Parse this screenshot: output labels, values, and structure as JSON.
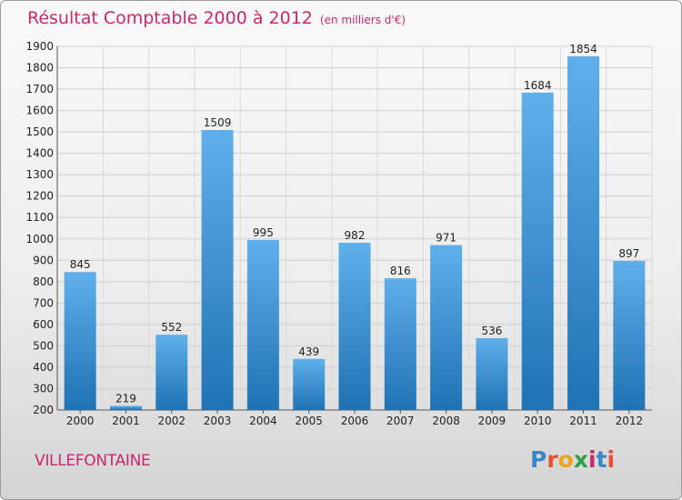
{
  "colors": {
    "title": "#c8286e",
    "bar_light": "#5fb0ea",
    "bar_dark": "#1f72b4"
  },
  "header": {
    "title": "Résultat Comptable 2000 à 2012",
    "subtitle": "(en milliers d'€)"
  },
  "footer": {
    "city": "VILLEFONTAINE",
    "logo": "Proxiti"
  },
  "chart_data": {
    "type": "bar",
    "title": "Résultat Comptable 2000 à 2012",
    "subtitle": "(en milliers d'€)",
    "xlabel": "",
    "ylabel": "",
    "categories": [
      "2000",
      "2001",
      "2002",
      "2003",
      "2004",
      "2005",
      "2006",
      "2007",
      "2008",
      "2009",
      "2010",
      "2011",
      "2012"
    ],
    "values": [
      845,
      219,
      552,
      1509,
      995,
      439,
      982,
      816,
      971,
      536,
      1684,
      1854,
      897
    ],
    "ylim": [
      200,
      1900
    ],
    "yticks": [
      200,
      300,
      400,
      500,
      600,
      700,
      800,
      900,
      1000,
      1100,
      1200,
      1300,
      1400,
      1500,
      1600,
      1700,
      1800,
      1900
    ],
    "grid": true,
    "legend": "none"
  }
}
